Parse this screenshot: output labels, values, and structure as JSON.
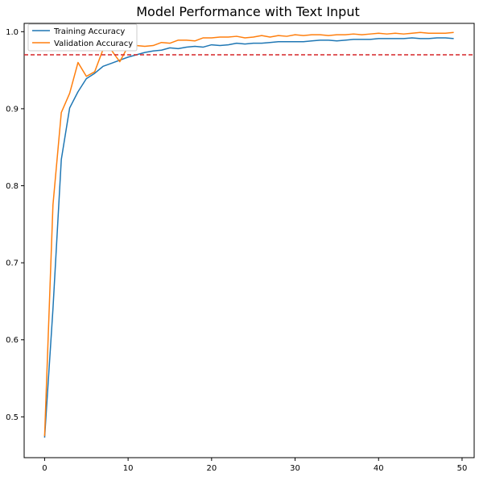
{
  "chart_data": {
    "type": "line",
    "title": "Model Performance with Text Input",
    "xlabel": "",
    "ylabel": "",
    "xlim": [
      -2.45,
      51.45
    ],
    "ylim": [
      0.447,
      1.0108
    ],
    "xticks": [
      0,
      10,
      20,
      30,
      40,
      50
    ],
    "yticks": [
      0.5,
      0.6,
      0.7,
      0.8,
      0.9,
      1.0
    ],
    "xtick_labels": [
      "0",
      "10",
      "20",
      "30",
      "40",
      "50"
    ],
    "ytick_labels": [
      "0.5",
      "0.6",
      "0.7",
      "0.8",
      "0.9",
      "1.0"
    ],
    "grid": false,
    "legend_position": "top-left",
    "hline": {
      "y": 0.97,
      "color": "#d62728",
      "style": "dashed"
    },
    "x": [
      0,
      1,
      2,
      3,
      4,
      5,
      6,
      7,
      8,
      9,
      10,
      11,
      12,
      13,
      14,
      15,
      16,
      17,
      18,
      19,
      20,
      21,
      22,
      23,
      24,
      25,
      26,
      27,
      28,
      29,
      30,
      31,
      32,
      33,
      34,
      35,
      36,
      37,
      38,
      39,
      40,
      41,
      42,
      43,
      44,
      45,
      46,
      47,
      48,
      49
    ],
    "series": [
      {
        "name": "Training Accuracy",
        "color": "#1f77b4",
        "values": [
          0.473,
          0.64,
          0.834,
          0.901,
          0.922,
          0.939,
          0.946,
          0.955,
          0.959,
          0.963,
          0.967,
          0.97,
          0.973,
          0.975,
          0.976,
          0.979,
          0.978,
          0.98,
          0.981,
          0.98,
          0.983,
          0.982,
          0.983,
          0.985,
          0.984,
          0.985,
          0.985,
          0.986,
          0.987,
          0.987,
          0.987,
          0.987,
          0.988,
          0.989,
          0.989,
          0.988,
          0.989,
          0.99,
          0.99,
          0.99,
          0.991,
          0.991,
          0.991,
          0.991,
          0.992,
          0.991,
          0.991,
          0.992,
          0.992,
          0.991
        ]
      },
      {
        "name": "Validation Accuracy",
        "color": "#ff7f0e",
        "values": [
          0.475,
          0.775,
          0.895,
          0.92,
          0.96,
          0.942,
          0.948,
          0.977,
          0.976,
          0.961,
          0.981,
          0.982,
          0.981,
          0.982,
          0.986,
          0.985,
          0.989,
          0.989,
          0.988,
          0.992,
          0.992,
          0.993,
          0.993,
          0.994,
          0.992,
          0.993,
          0.995,
          0.993,
          0.995,
          0.994,
          0.996,
          0.995,
          0.996,
          0.996,
          0.995,
          0.996,
          0.996,
          0.997,
          0.996,
          0.997,
          0.998,
          0.997,
          0.998,
          0.997,
          0.998,
          0.999,
          0.998,
          0.998,
          0.998,
          0.999
        ]
      }
    ]
  }
}
